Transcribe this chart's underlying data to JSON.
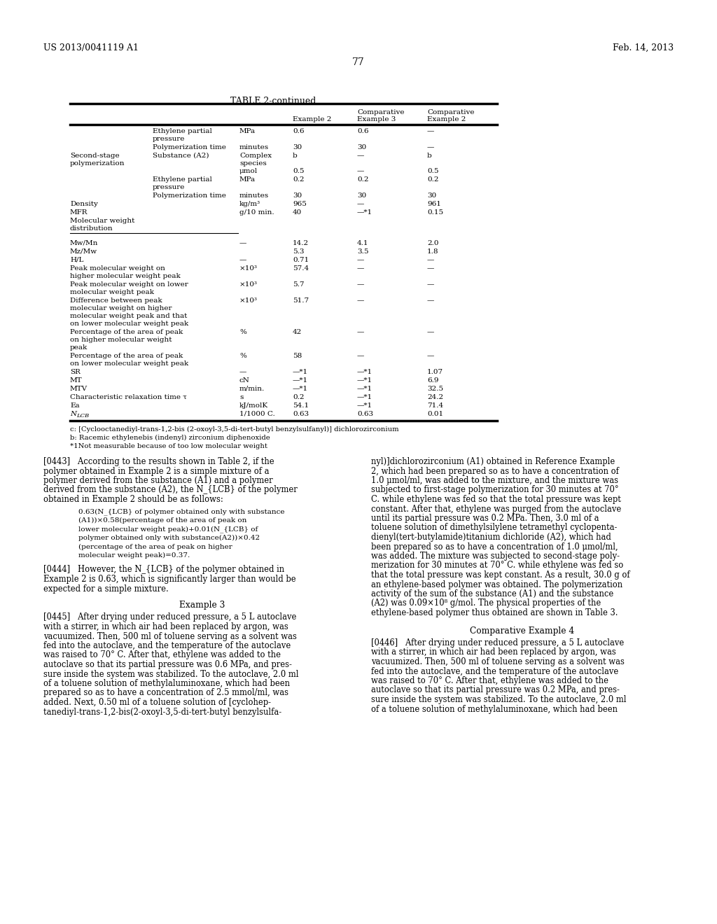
{
  "page_number": "77",
  "header_left": "US 2013/0041119 A1",
  "header_right": "Feb. 14, 2013",
  "table_title": "TABLE 2-continued",
  "footnotes": [
    "c: [Cyclooctanediyl-trans-1,2-bis (2-oxoyl-3,5-di-tert-butyl benzylsulfanyl)] dichlorozirconium",
    "b: Racemic ethylenebis (indenyl) zirconium diphenoxide",
    "*1Not measurable because of too low molecular weight"
  ],
  "body_left_col": [
    "[0443]   According to the results shown in Table 2, if the",
    "polymer obtained in Example 2 is a simple mixture of a",
    "polymer derived from the substance (A1) and a polymer",
    "derived from the substance (A2), the N_{LCB} of the polymer",
    "obtained in Example 2 should be as follows:"
  ],
  "formula_lines": [
    "0.63(N_{LCB} of polymer obtained only with substance",
    "(A1))×0.58(percentage of the area of peak on",
    "lower molecular weight peak)+0.01(N_{LCB} of",
    "polymer obtained only with substance(A2))×0.42",
    "(percentage of the area of peak on higher",
    "molecular weight peak)=0.37."
  ],
  "para0444_lines": [
    "[0444]   However, the N_{LCB} of the polymer obtained in",
    "Example 2 is 0.63, which is significantly larger than would be",
    "expected for a simple mixture."
  ],
  "ex3_heading": "Example 3",
  "para0445_lines": [
    "[0445]   After drying under reduced pressure, a 5 L autoclave",
    "with a stirrer, in which air had been replaced by argon, was",
    "vacuumized. Then, 500 ml of toluene serving as a solvent was",
    "fed into the autoclave, and the temperature of the autoclave",
    "was raised to 70° C. After that, ethylene was added to the",
    "autoclave so that its partial pressure was 0.6 MPa, and pres-",
    "sure inside the system was stabilized. To the autoclave, 2.0 ml",
    "of a toluene solution of methylaluminoxane, which had been",
    "prepared so as to have a concentration of 2.5 mmol/ml, was",
    "added. Next, 0.50 ml of a toluene solution of [cyclohep-",
    "tanediyl-trans-1,2-bis(2-oxoyl-3,5-di-tert-butyl benzylsulfa-"
  ],
  "body_right_col": [
    "nyl)]dichlorozirconium (A1) obtained in Reference Example",
    "2, which had been prepared so as to have a concentration of",
    "1.0 μmol/ml, was added to the mixture, and the mixture was",
    "subjected to first-stage polymerization for 30 minutes at 70°",
    "C. while ethylene was fed so that the total pressure was kept",
    "constant. After that, ethylene was purged from the autoclave",
    "until its partial pressure was 0.2 MPa. Then, 3.0 ml of a",
    "toluene solution of dimethylsilylene tetramethyl cyclopenta-",
    "dienyl(tert-butylamide)titanium dichloride (A2), which had",
    "been prepared so as to have a concentration of 1.0 μmol/ml,",
    "was added. The mixture was subjected to second-stage poly-",
    "merization for 30 minutes at 70° C. while ethylene was fed so",
    "that the total pressure was kept constant. As a result, 30.0 g of",
    "an ethylene-based polymer was obtained. The polymerization",
    "activity of the sum of the substance (A1) and the substance",
    "(A2) was 0.09×10⁸ g/mol. The physical properties of the",
    "ethylene-based polymer thus obtained are shown in Table 3."
  ],
  "comp4_heading": "Comparative Example 4",
  "para0446_lines": [
    "[0446]   After drying under reduced pressure, a 5 L autoclave",
    "with a stirrer, in which air had been replaced by argon, was",
    "vacuumized. Then, 500 ml of toluene serving as a solvent was",
    "fed into the autoclave, and the temperature of the autoclave",
    "was raised to 70° C. After that, ethylene was added to the",
    "autoclave so that its partial pressure was 0.2 MPa, and pres-",
    "sure inside the system was stabilized. To the autoclave, 2.0 ml",
    "of a toluene solution of methylaluminoxane, which had been"
  ]
}
